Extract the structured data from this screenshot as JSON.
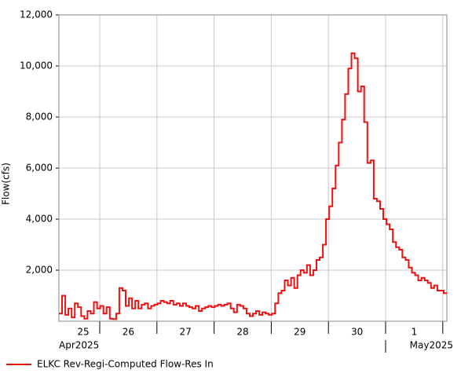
{
  "chart_data": {
    "type": "line",
    "y_label": "Flow(cfs)",
    "xticks": [
      "25",
      "26",
      "27",
      "28",
      "29",
      "30",
      "1"
    ],
    "month_labels": [
      "Apr2025",
      "May2025"
    ],
    "ylim": [
      0,
      12000
    ],
    "yticks": [
      {
        "value": 2000,
        "label": "2,000"
      },
      {
        "value": 4000,
        "label": "4,000"
      },
      {
        "value": 6000,
        "label": "6,000"
      },
      {
        "value": 8000,
        "label": "8,000"
      },
      {
        "value": 10000,
        "label": "10,000"
      },
      {
        "value": 12000,
        "label": "12,000"
      }
    ],
    "grid": true,
    "step": true,
    "legend": "bottom-left",
    "series": [
      {
        "name": "ELKC Rev-Regi-Computed Flow-Res In",
        "color": "#ee1111",
        "values": [
          300,
          1000,
          250,
          500,
          150,
          700,
          550,
          200,
          100,
          400,
          300,
          750,
          500,
          600,
          300,
          550,
          100,
          80,
          300,
          1300,
          1200,
          600,
          900,
          500,
          800,
          500,
          650,
          700,
          500,
          600,
          650,
          700,
          800,
          750,
          700,
          800,
          650,
          700,
          600,
          700,
          600,
          550,
          500,
          600,
          400,
          500,
          550,
          600,
          550,
          600,
          650,
          600,
          650,
          700,
          500,
          350,
          650,
          600,
          500,
          300,
          200,
          300,
          400,
          250,
          350,
          300,
          250,
          300,
          700,
          1100,
          1200,
          1600,
          1400,
          1700,
          1300,
          1800,
          2000,
          1900,
          2200,
          1800,
          2000,
          2400,
          2500,
          3000,
          4000,
          4500,
          5200,
          6100,
          7000,
          7900,
          8900,
          9900,
          10500,
          10300,
          9000,
          9200,
          7800,
          6200,
          6300,
          4800,
          4700,
          4400,
          4000,
          3800,
          3600,
          3100,
          2900,
          2800,
          2500,
          2400,
          2100,
          1900,
          1800,
          1600,
          1700,
          1600,
          1500,
          1300,
          1400,
          1200,
          1200,
          1100
        ]
      }
    ]
  }
}
